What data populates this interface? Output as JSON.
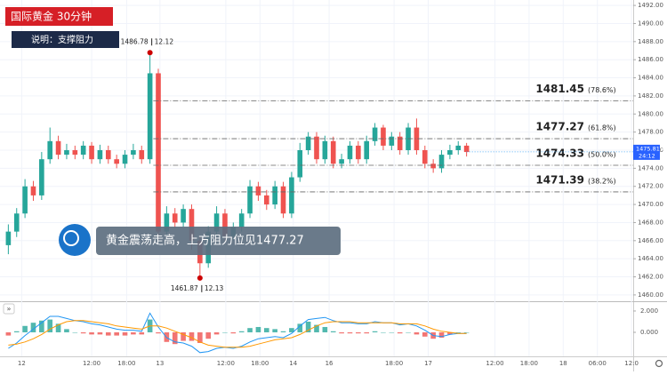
{
  "chart_data": {
    "type": "candlestick",
    "badge_title": "国际黄金 30分钟",
    "badge_note": "说明：支撑阻力",
    "callout": "黄金震荡走高，上方阻力位见1477.27",
    "up_color": "#26a69a",
    "down_color": "#ef5350",
    "grid": true,
    "open": [
      1465.5,
      1467,
      1469,
      1472,
      1471,
      1475,
      1477,
      1475.5,
      1476,
      1475.5,
      1476.5,
      1475,
      1476,
      1475,
      1474.5,
      1475.5,
      1476,
      1475,
      1484.5,
      1467,
      1469,
      1468,
      1469.5,
      1466,
      1463.5,
      1467,
      1469,
      1466.5,
      1467.5,
      1469,
      1472,
      1471,
      1470,
      1472,
      1469,
      1473,
      1476,
      1477.5,
      1475,
      1477,
      1474.5,
      1475,
      1476.5,
      1475,
      1477,
      1478.5,
      1476.5,
      1477.5,
      1476,
      1478.5,
      1476,
      1474.5,
      1474,
      1475.5,
      1476,
      1476.5
    ],
    "high": [
      1467.8,
      1469.6,
      1472.8,
      1472.6,
      1475.8,
      1478.5,
      1477.6,
      1476.7,
      1476.5,
      1477,
      1476.9,
      1476.6,
      1476.5,
      1475.5,
      1476,
      1476.7,
      1476.5,
      1486.78,
      1485,
      1469.8,
      1469.6,
      1470,
      1470,
      1466.5,
      1467.6,
      1469.8,
      1469.5,
      1468,
      1469.5,
      1472.7,
      1472.5,
      1471.6,
      1472.6,
      1472.5,
      1473.6,
      1476.8,
      1478,
      1478,
      1477.6,
      1477.5,
      1475.6,
      1477,
      1477,
      1477.6,
      1479,
      1478.8,
      1478,
      1478,
      1479,
      1479.5,
      1476.5,
      1475,
      1476,
      1476.6,
      1477,
      1476.8
    ],
    "low": [
      1464.5,
      1466.4,
      1468.5,
      1470.4,
      1470.5,
      1474.5,
      1475,
      1475,
      1475,
      1475,
      1474.5,
      1474.5,
      1474.5,
      1474,
      1474,
      1475,
      1474.5,
      1474.5,
      1466,
      1466.5,
      1467.4,
      1467.5,
      1465,
      1461.87,
      1463,
      1466.5,
      1466,
      1466,
      1467,
      1468.5,
      1470.4,
      1469.4,
      1469.5,
      1468.5,
      1468.5,
      1472.5,
      1475.5,
      1474.5,
      1474.5,
      1474,
      1474,
      1474.5,
      1474.5,
      1474.5,
      1476.5,
      1476,
      1476,
      1475.5,
      1475.5,
      1475.5,
      1474,
      1473.5,
      1473.5,
      1475,
      1475.5,
      1475.3
    ],
    "close": [
      1467,
      1469,
      1472,
      1471,
      1475,
      1477,
      1475.5,
      1476,
      1475.5,
      1476.5,
      1475,
      1476,
      1475,
      1474.5,
      1475.5,
      1476,
      1475,
      1484.5,
      1467,
      1469,
      1468,
      1469.5,
      1466,
      1463.5,
      1467,
      1469,
      1466.5,
      1467.5,
      1469,
      1472,
      1471,
      1470,
      1472,
      1469,
      1473,
      1476,
      1477.5,
      1475,
      1477,
      1474.5,
      1475,
      1476.5,
      1475,
      1477,
      1478.5,
      1476.5,
      1477.5,
      1476,
      1478.5,
      1476,
      1474.5,
      1474,
      1475.5,
      1476,
      1476.5,
      1475.8
    ],
    "xlim": [
      0,
      76
    ],
    "xticks": [
      {
        "value": 2.6,
        "label": "12"
      },
      {
        "value": 11,
        "label": "12:00"
      },
      {
        "value": 15.2,
        "label": "18:00"
      },
      {
        "value": 19.2,
        "label": "13"
      },
      {
        "value": 27.1,
        "label": "12:00"
      },
      {
        "value": 31.2,
        "label": "18:00"
      },
      {
        "value": 35.2,
        "label": "14"
      },
      {
        "value": 39.5,
        "label": "16"
      },
      {
        "value": 47.3,
        "label": "18:00"
      },
      {
        "value": 51.4,
        "label": "17"
      },
      {
        "value": 59.4,
        "label": "12:00"
      },
      {
        "value": 63.5,
        "label": "18:00"
      },
      {
        "value": 67.6,
        "label": "18"
      },
      {
        "value": 71.7,
        "label": "06:00"
      },
      {
        "value": 75.8,
        "label": "12:0"
      }
    ],
    "ylim": [
      1459.4,
      1492.6
    ],
    "yticks": [
      {
        "value": 1460,
        "label": "1460.00"
      },
      {
        "value": 1462,
        "label": "1462.00"
      },
      {
        "value": 1464,
        "label": "1464.00"
      },
      {
        "value": 1466,
        "label": "1466.00"
      },
      {
        "value": 1468,
        "label": "1468.00"
      },
      {
        "value": 1470,
        "label": "1470.00"
      },
      {
        "value": 1472,
        "label": "1472.00"
      },
      {
        "value": 1474,
        "label": "1474.00"
      },
      {
        "value": 1476,
        "label": "1476.00"
      },
      {
        "value": 1478,
        "label": "1478.00"
      },
      {
        "value": 1480,
        "label": "1480.00"
      },
      {
        "value": 1482,
        "label": "1482.00"
      },
      {
        "value": 1484,
        "label": "1484.00"
      },
      {
        "value": 1486,
        "label": "1486.00"
      },
      {
        "value": 1488,
        "label": "1488.00"
      },
      {
        "value": 1490,
        "label": "1490.00"
      },
      {
        "value": 1492,
        "label": "1492.00"
      }
    ],
    "fib_levels": [
      {
        "value": 1481.45,
        "ratio": "(78.6%)"
      },
      {
        "value": 1477.27,
        "ratio": "(61.8%)"
      },
      {
        "value": 1474.33,
        "ratio": "(50.0%)"
      },
      {
        "value": 1471.39,
        "ratio": "(38.2%)"
      }
    ],
    "high_point": {
      "value": 1486.78,
      "date": "12.12"
    },
    "low_point": {
      "value": 1461.87,
      "date": "12.13"
    },
    "last_price": 1475.815,
    "countdown": "24:12",
    "macd": {
      "y2lim": [
        -2.25,
        2.83
      ],
      "y2ticks": [
        {
          "value": 2,
          "label": "2.000"
        },
        {
          "value": 0,
          "label": "0.000"
        }
      ],
      "macd_color": "#2196f3",
      "signal_color": "#ff9800",
      "macd_line": [
        -1.5,
        -1,
        -0.3,
        0.3,
        0.9,
        1.5,
        1.5,
        1.3,
        1.1,
        1,
        0.8,
        0.7,
        0.5,
        0.3,
        0.2,
        0.2,
        0.1,
        1.8,
        0.5,
        -0.5,
        -0.9,
        -1,
        -1.3,
        -1.9,
        -1.8,
        -1.5,
        -1.4,
        -1.5,
        -1.3,
        -0.9,
        -0.6,
        -0.5,
        -0.4,
        -0.5,
        -0.1,
        0.6,
        1.2,
        1.3,
        1.4,
        1.1,
        0.9,
        0.9,
        0.8,
        0.8,
        1,
        0.9,
        0.9,
        0.7,
        0.8,
        0.6,
        0.2,
        -0.3,
        -0.4,
        -0.2,
        -0.1,
        -0.1
      ],
      "signal_line": [
        -1.2,
        -1.1,
        -0.9,
        -0.6,
        -0.2,
        0.3,
        0.7,
        1,
        1.1,
        1.1,
        1,
        0.9,
        0.8,
        0.6,
        0.5,
        0.4,
        0.3,
        0.6,
        0.6,
        0.4,
        0.1,
        -0.2,
        -0.5,
        -0.9,
        -1.2,
        -1.3,
        -1.4,
        -1.4,
        -1.4,
        -1.3,
        -1.1,
        -0.9,
        -0.7,
        -0.6,
        -0.5,
        -0.2,
        0.2,
        0.6,
        0.9,
        1,
        1,
        1,
        0.9,
        0.9,
        0.9,
        0.9,
        0.9,
        0.8,
        0.8,
        0.8,
        0.6,
        0.3,
        0.1,
        0,
        -0.1,
        -0.1
      ],
      "histogram": [
        -0.3,
        0.1,
        0.6,
        0.9,
        1.1,
        1.2,
        0.8,
        0.3,
        0,
        -0.1,
        -0.2,
        -0.2,
        -0.3,
        -0.3,
        -0.3,
        -0.2,
        -0.2,
        1.2,
        -0.1,
        -0.9,
        -1.1,
        -0.8,
        -0.8,
        -1,
        -0.6,
        -0.2,
        0,
        -0.1,
        0.1,
        0.4,
        0.5,
        0.4,
        0.3,
        0.1,
        0.4,
        0.8,
        1,
        0.7,
        0.5,
        0.1,
        -0.1,
        -0.1,
        -0.1,
        -0.1,
        0.1,
        0,
        0,
        -0.1,
        0,
        -0.2,
        -0.4,
        -0.6,
        -0.5,
        -0.2,
        0,
        0
      ]
    }
  }
}
